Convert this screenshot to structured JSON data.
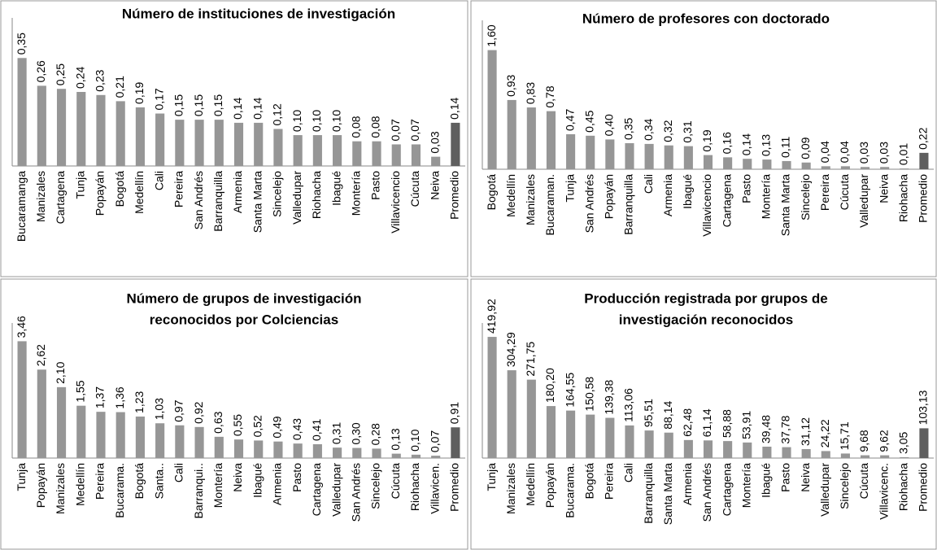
{
  "chart_data": [
    {
      "type": "bar",
      "title": [
        "Número de instituciones  de investigación"
      ],
      "categories": [
        "Bucaramanga",
        "Manizales",
        "Cartagena",
        "Tunja",
        "Popayán",
        "Bogotá",
        "Medellín",
        "Cali",
        "Pereira",
        "San Andrés",
        "Barranquilla",
        "Armenia",
        "Santa Marta",
        "Sincelejo",
        "Valledupar",
        "Riohacha",
        "Ibagué",
        "Montería",
        "Pasto",
        "Villavicencio",
        "Cúcuta",
        "Neiva",
        "Promedio"
      ],
      "values": [
        0.35,
        0.26,
        0.25,
        0.24,
        0.23,
        0.21,
        0.19,
        0.17,
        0.15,
        0.15,
        0.15,
        0.14,
        0.14,
        0.12,
        0.1,
        0.1,
        0.1,
        0.08,
        0.08,
        0.07,
        0.07,
        0.03,
        0.14
      ],
      "value_labels": [
        "0,35",
        "0,26",
        "0,25",
        "0,24",
        "0,23",
        "0,21",
        "0,19",
        "0,17",
        "0,15",
        "0,15",
        "0,15",
        "0,14",
        "0,14",
        "0,12",
        "0,10",
        "0,10",
        "0,10",
        "0,08",
        "0,08",
        "0,07",
        "0,07",
        "0,03",
        "0,14"
      ],
      "color": "#969696",
      "highlight": {
        "category": "Promedio",
        "color": "#5f5f5f"
      },
      "ylim": [
        0,
        0.48
      ]
    },
    {
      "type": "bar",
      "title": [
        "Número de profesores con doctorado"
      ],
      "categories": [
        "Bogotá",
        "Medellín",
        "Manizales",
        "Bucaraman.",
        "Tunja",
        "San Andrés",
        "Popayán",
        "Barranquilla",
        "Cali",
        "Armenia",
        "Ibagué",
        "Villavicencio",
        "Cartagena",
        "Pasto",
        "Montería",
        "Santa Marta",
        "Sincelejo",
        "Pereira",
        "Cúcuta",
        "Valledupar",
        "Neiva",
        "Riohacha",
        "Promedio"
      ],
      "values": [
        1.6,
        0.93,
        0.83,
        0.78,
        0.47,
        0.45,
        0.4,
        0.35,
        0.34,
        0.32,
        0.31,
        0.19,
        0.16,
        0.14,
        0.13,
        0.11,
        0.09,
        0.04,
        0.04,
        0.03,
        0.03,
        0.01,
        0.22
      ],
      "value_labels": [
        "1,60",
        "0,93",
        "0,83",
        "0,78",
        "0,47",
        "0,45",
        "0,40",
        "0,35",
        "0,34",
        "0,32",
        "0,31",
        "0,19",
        "0,16",
        "0,14",
        "0,13",
        "0,11",
        "0,09",
        "0,04",
        "0,04",
        "0,03",
        "0,03",
        "0,01",
        "0,22"
      ],
      "color": "#969696",
      "highlight": {
        "category": "Promedio",
        "color": "#5f5f5f"
      },
      "ylim": [
        0,
        2
      ]
    },
    {
      "type": "bar",
      "title": [
        "Número de grupos de investigación",
        "reconocidos por Colciencias"
      ],
      "categories": [
        "Tunja",
        "Popayán",
        "Manizales",
        "Medellín",
        "Pereira",
        "Bucarama.",
        "Bogotá",
        "Santa..",
        "Cali",
        "Barranqui..",
        "Montería",
        "Neiva",
        "Ibagué",
        "Armenia",
        "Pasto",
        "Cartagena",
        "Valledupar",
        "San Andrés",
        "Sincelejo",
        "Cúcuta",
        "Riohacha",
        "Villavicen.",
        "Promedio"
      ],
      "values": [
        3.46,
        2.62,
        2.1,
        1.55,
        1.37,
        1.36,
        1.23,
        1.03,
        0.97,
        0.92,
        0.63,
        0.55,
        0.52,
        0.49,
        0.43,
        0.41,
        0.31,
        0.3,
        0.28,
        0.13,
        0.1,
        0.07,
        0.91
      ],
      "value_labels": [
        "3,46",
        "2,62",
        "2,10",
        "1,55",
        "1,37",
        "1,36",
        "1,23",
        "1,03",
        "0,97",
        "0,92",
        "0,63",
        "0,55",
        "0,52",
        "0,49",
        "0,43",
        "0,41",
        "0,31",
        "0,30",
        "0,28",
        "0,13",
        "0,10",
        "0,07",
        "0,91"
      ],
      "color": "#969696",
      "highlight": {
        "category": "Promedio",
        "color": "#5f5f5f"
      },
      "ylim": [
        0,
        4
      ]
    },
    {
      "type": "bar",
      "title": [
        "Producción registrada por grupos de",
        "investigación reconocidos"
      ],
      "categories": [
        "Tunja",
        "Manizales",
        "Medellín",
        "Popayán",
        "Bucarama.",
        "Bogotá",
        "Pereira",
        "Cali",
        "Barranquilla",
        "Santa Marta",
        "Armenia",
        "San Andrés",
        "Cartagena",
        "Montería",
        "Ibagué",
        "Pasto",
        "Neiva",
        "Valledupar",
        "Sincelejo",
        "Cúcuta",
        "Villavicenc.",
        "Riohacha",
        "Promedio"
      ],
      "values": [
        419.92,
        304.29,
        271.75,
        180.2,
        164.55,
        150.58,
        139.38,
        113.06,
        95.51,
        88.14,
        62.48,
        61.14,
        58.88,
        53.91,
        39.48,
        37.78,
        31.12,
        24.22,
        15.71,
        9.68,
        9.62,
        3.05,
        103.13
      ],
      "value_labels": [
        "419,92",
        "304,29",
        "271,75",
        "180,20",
        "164,55",
        "150,58",
        "139,38",
        "113,06",
        "95,51",
        "88,14",
        "62,48",
        "61,14",
        "58,88",
        "53,91",
        "39,48",
        "37,78",
        "31,12",
        "24,22",
        "15,71",
        "9,68",
        "9,62",
        "3,05",
        "103,13"
      ],
      "color": "#969696",
      "highlight": {
        "category": "Promedio",
        "color": "#5f5f5f"
      },
      "ylim": [
        0,
        468
      ]
    }
  ]
}
